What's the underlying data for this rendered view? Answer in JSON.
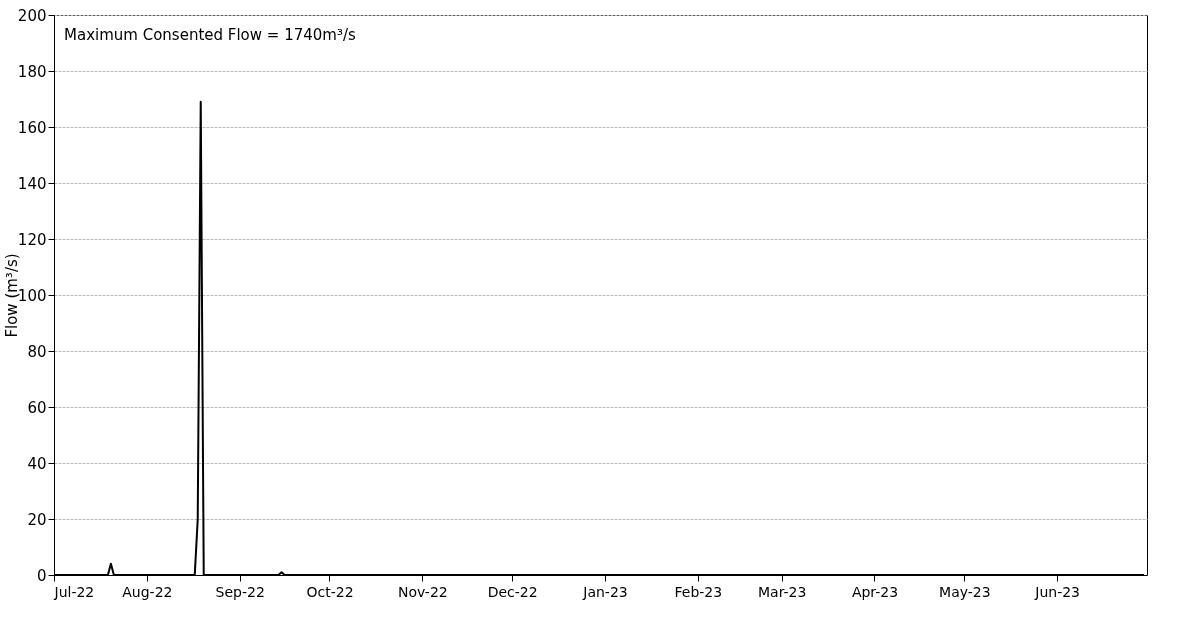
{
  "chart_data": {
    "type": "line",
    "ylabel": "Flow (m³/s)",
    "x": [
      "2022-07-01",
      "2022-07-19",
      "2022-07-20",
      "2022-07-21",
      "2022-08-17",
      "2022-08-18",
      "2022-08-19",
      "2022-08-20",
      "2022-09-14",
      "2022-09-15",
      "2022-09-16",
      "2023-06-30"
    ],
    "series": [
      {
        "color": "#000000",
        "values": [
          0,
          0,
          4,
          0,
          0,
          20,
          169,
          0,
          0,
          1,
          0,
          0
        ]
      }
    ],
    "xlim": [
      "2022-07-01",
      "2023-07-01"
    ],
    "xticks": [
      {
        "value": "2022-07-01",
        "label": "Jul-22"
      },
      {
        "value": "2022-08-01",
        "label": "Aug-22"
      },
      {
        "value": "2022-09-01",
        "label": "Sep-22"
      },
      {
        "value": "2022-10-01",
        "label": "Oct-22"
      },
      {
        "value": "2022-11-01",
        "label": "Nov-22"
      },
      {
        "value": "2022-12-01",
        "label": "Dec-22"
      },
      {
        "value": "2023-01-01",
        "label": "Jan-23"
      },
      {
        "value": "2023-02-01",
        "label": "Feb-23"
      },
      {
        "value": "2023-03-01",
        "label": "Mar-23"
      },
      {
        "value": "2023-04-01",
        "label": "Apr-23"
      },
      {
        "value": "2023-05-01",
        "label": "May-23"
      },
      {
        "value": "2023-06-01",
        "label": "Jun-23"
      }
    ],
    "ylim": [
      0,
      200
    ],
    "yticks": [
      0,
      20,
      40,
      60,
      80,
      100,
      120,
      140,
      160,
      180,
      200
    ],
    "grid": "y",
    "marker": "none",
    "line_style": "solid",
    "annotations": [
      "Maximum Consented Flow = 1740m³/s"
    ]
  }
}
